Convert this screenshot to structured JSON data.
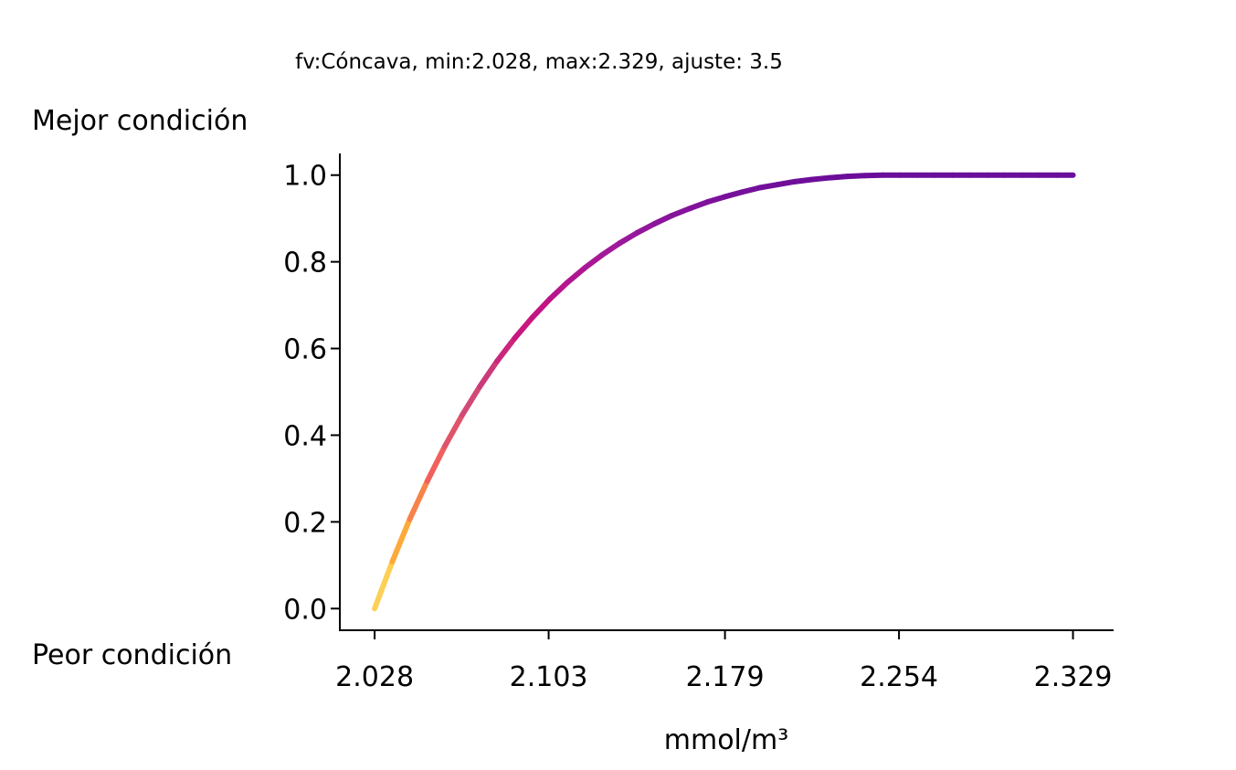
{
  "chart_data": {
    "type": "line",
    "title": "fv:Cóncava, min:2.028, max:2.329, ajuste: 3.5",
    "xlabel": "mmol/m³",
    "ylabel_top": "Mejor condición",
    "ylabel_bottom": "Peor condición",
    "xlim": [
      2.013,
      2.3465
    ],
    "ylim": [
      -0.05,
      1.05
    ],
    "x_ticks": [
      2.028,
      2.103,
      2.179,
      2.254,
      2.329
    ],
    "x_tick_labels": [
      "2.028",
      "2.103",
      "2.179",
      "2.254",
      "2.329"
    ],
    "y_ticks": [
      0.0,
      0.2,
      0.4,
      0.6,
      0.8,
      1.0
    ],
    "y_tick_labels": [
      "0.0",
      "0.2",
      "0.4",
      "0.6",
      "0.8",
      "1.0"
    ],
    "colormap": "plasma_r",
    "color_stops": [
      "#fce467",
      "#fca636",
      "#f1605d",
      "#cc4778",
      "#c8117f",
      "#a01a9c",
      "#6a0d9a"
    ],
    "grid": false,
    "legend": "none",
    "series": [
      {
        "x": [
          2.028,
          2.0356,
          2.0431,
          2.0507,
          2.0582,
          2.0658,
          2.0733,
          2.0808,
          2.0884,
          2.0959,
          2.1035,
          2.111,
          2.1186,
          2.1261,
          2.1336,
          2.1412,
          2.1487,
          2.1562,
          2.1638,
          2.1714,
          2.1789,
          2.1864,
          2.194,
          2.2015,
          2.2091,
          2.2166,
          2.2242,
          2.2317,
          2.2392,
          2.2468,
          2.2543,
          2.2619,
          2.2694,
          2.277,
          2.2845,
          2.292,
          2.2996,
          2.3071,
          2.3147,
          2.3222,
          2.329
        ],
        "values": [
          0.0,
          0.108,
          0.206,
          0.294,
          0.374,
          0.447,
          0.512,
          0.571,
          0.624,
          0.671,
          0.714,
          0.752,
          0.786,
          0.816,
          0.843,
          0.867,
          0.888,
          0.907,
          0.923,
          0.938,
          0.95,
          0.961,
          0.971,
          0.978,
          0.985,
          0.99,
          0.994,
          0.997,
          0.999,
          1.0,
          1.0,
          1.0,
          1.0,
          1.0,
          1.0,
          1.0,
          1.0,
          1.0,
          1.0,
          1.0,
          1.0
        ]
      }
    ]
  }
}
